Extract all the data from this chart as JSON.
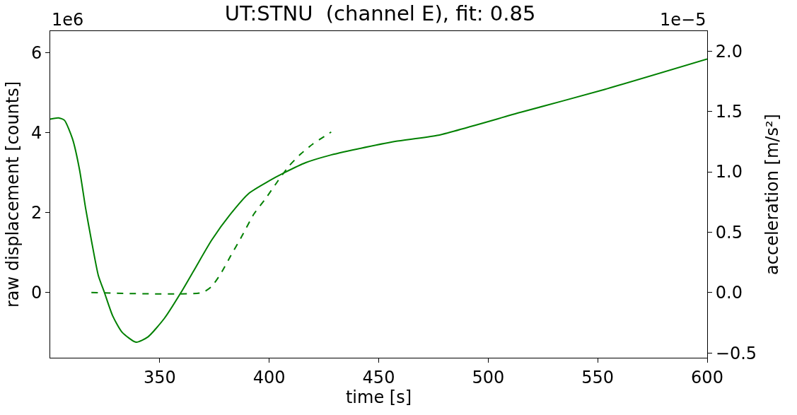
{
  "chart_data": {
    "type": "line",
    "title": "UT:STNU  (channel E), fit: 0.85",
    "xlabel": "time [s]",
    "ylabel": "raw displacement [counts]",
    "y2label": "acceleration [m/s²]",
    "annotations": [
      "1e6",
      "1e−5"
    ],
    "xlim": [
      300,
      600
    ],
    "xticks": [
      350,
      400,
      450,
      500,
      550,
      600
    ],
    "ylim": [
      -1.63,
      6.54
    ],
    "yticks": [
      0,
      2,
      4,
      6
    ],
    "y2lim": [
      -0.54,
      2.166
    ],
    "y2ticks": [
      {
        "value": -0.5,
        "label": "−0.5"
      },
      {
        "value": 0,
        "label": "0.0"
      },
      {
        "value": 0.5,
        "label": "0.5"
      },
      {
        "value": 1,
        "label": "1.0"
      },
      {
        "value": 1.5,
        "label": "1.5"
      },
      {
        "value": 2,
        "label": "2.0"
      }
    ],
    "grid": false,
    "series": [
      {
        "color": "#008000",
        "line_style": "solid",
        "x": [
          300,
          303.8,
          306.5,
          310.2,
          313.4,
          316.1,
          318.8,
          322,
          324.7,
          328.5,
          332.8,
          339.2,
          344.6,
          352.2,
          359.7,
          366.1,
          373.7,
          382.3,
          390.9,
          399.5,
          407,
          416.7,
          427.4,
          440.3,
          457.5,
          476.7,
          514.9,
          553.2,
          600
        ],
        "values": [
          4.34,
          4.37,
          4.31,
          3.84,
          3.07,
          2.13,
          1.31,
          0.42,
          0.01,
          -0.58,
          -0.99,
          -1.24,
          -1.11,
          -0.64,
          0,
          0.6,
          1.31,
          1.96,
          2.49,
          2.78,
          3.0,
          3.25,
          3.43,
          3.59,
          3.78,
          3.93,
          4.51,
          5.08,
          5.84
        ]
      },
      {
        "color": "#008000",
        "line_style": "dashed",
        "axis": "y2",
        "x": [
          318.8,
          369.4,
          373.7,
          378,
          382.3,
          387.6,
          393,
          398.4,
          403.8,
          409.1,
          414.5,
          419.9,
          428.3
        ],
        "values": [
          0,
          0,
          0.05,
          0.16,
          0.3,
          0.47,
          0.65,
          0.78,
          0.92,
          1.05,
          1.15,
          1.23,
          1.33
        ]
      }
    ]
  }
}
